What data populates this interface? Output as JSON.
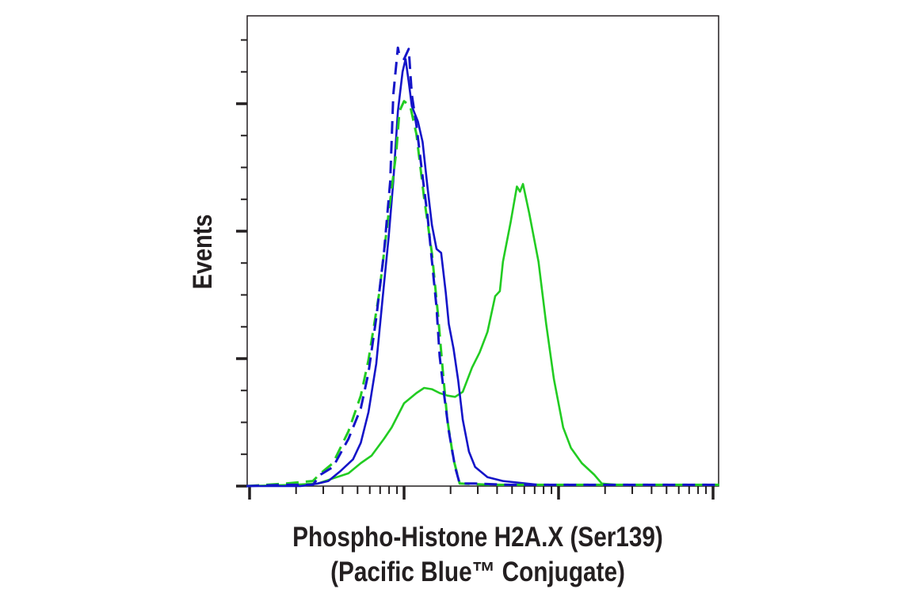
{
  "chart_data": {
    "type": "line",
    "title": "",
    "xlabel_lines": [
      "Phospho-Histone H2A.X (Ser139)",
      "(Pacific Blue™ Conjugate)"
    ],
    "ylabel": "Events",
    "x_scale": "log (decades, unlabeled)",
    "xlim": [
      -0.02,
      3.04
    ],
    "ylim": [
      0,
      3.69
    ],
    "x_major_ticks": [
      0,
      1,
      2,
      3
    ],
    "y_major_ticks": [
      0,
      1,
      2,
      3
    ],
    "y_minor_step": 0.25,
    "grid": false,
    "legend": "none",
    "series": [
      {
        "name": "green-solid",
        "color": "#22cc22",
        "dash": false,
        "points": [
          [
            -0.02,
            0
          ],
          [
            0.28,
            0.01
          ],
          [
            0.44,
            0.02
          ],
          [
            0.54,
            0.06
          ],
          [
            0.64,
            0.1
          ],
          [
            0.72,
            0.18
          ],
          [
            0.79,
            0.24
          ],
          [
            0.87,
            0.37
          ],
          [
            0.92,
            0.46
          ],
          [
            1.0,
            0.65
          ],
          [
            1.08,
            0.73
          ],
          [
            1.13,
            0.77
          ],
          [
            1.18,
            0.76
          ],
          [
            1.23,
            0.73
          ],
          [
            1.28,
            0.71
          ],
          [
            1.33,
            0.7
          ],
          [
            1.38,
            0.74
          ],
          [
            1.44,
            0.93
          ],
          [
            1.49,
            1.05
          ],
          [
            1.54,
            1.21
          ],
          [
            1.59,
            1.49
          ],
          [
            1.62,
            1.53
          ],
          [
            1.64,
            1.76
          ],
          [
            1.69,
            2.07
          ],
          [
            1.73,
            2.35
          ],
          [
            1.75,
            2.31
          ],
          [
            1.77,
            2.37
          ],
          [
            1.81,
            2.14
          ],
          [
            1.87,
            1.76
          ],
          [
            1.92,
            1.27
          ],
          [
            1.97,
            0.84
          ],
          [
            2.03,
            0.46
          ],
          [
            2.08,
            0.3
          ],
          [
            2.15,
            0.18
          ],
          [
            2.23,
            0.09
          ],
          [
            2.28,
            0.02
          ],
          [
            2.38,
            0.01
          ],
          [
            3.04,
            0.01
          ]
        ]
      },
      {
        "name": "blue-solid",
        "color": "#1414c8",
        "dash": false,
        "points": [
          [
            -0.02,
            0
          ],
          [
            0.33,
            0
          ],
          [
            0.44,
            0.02
          ],
          [
            0.51,
            0.04
          ],
          [
            0.59,
            0.12
          ],
          [
            0.67,
            0.21
          ],
          [
            0.72,
            0.34
          ],
          [
            0.77,
            0.58
          ],
          [
            0.82,
            0.96
          ],
          [
            0.87,
            1.58
          ],
          [
            0.9,
            1.95
          ],
          [
            0.93,
            2.39
          ],
          [
            0.96,
            2.94
          ],
          [
            0.99,
            3.25
          ],
          [
            1.01,
            3.35
          ],
          [
            1.03,
            3.17
          ],
          [
            1.05,
            2.98
          ],
          [
            1.09,
            2.86
          ],
          [
            1.12,
            2.7
          ],
          [
            1.15,
            2.36
          ],
          [
            1.18,
            2.05
          ],
          [
            1.21,
            1.86
          ],
          [
            1.24,
            1.83
          ],
          [
            1.27,
            1.52
          ],
          [
            1.29,
            1.27
          ],
          [
            1.32,
            1.08
          ],
          [
            1.35,
            0.83
          ],
          [
            1.38,
            0.52
          ],
          [
            1.42,
            0.27
          ],
          [
            1.46,
            0.15
          ],
          [
            1.54,
            0.07
          ],
          [
            1.64,
            0.04
          ],
          [
            1.87,
            0.01
          ],
          [
            3.04,
            0.01
          ]
        ]
      },
      {
        "name": "green-dashed",
        "color": "#22cc22",
        "dash": true,
        "points": [
          [
            -0.02,
            0
          ],
          [
            0.23,
            0.02
          ],
          [
            0.41,
            0.04
          ],
          [
            0.46,
            0.1
          ],
          [
            0.54,
            0.18
          ],
          [
            0.64,
            0.43
          ],
          [
            0.72,
            0.71
          ],
          [
            0.77,
            0.99
          ],
          [
            0.84,
            1.52
          ],
          [
            0.9,
            2.14
          ],
          [
            0.95,
            2.63
          ],
          [
            0.97,
            2.94
          ],
          [
            1.0,
            3.02
          ],
          [
            1.04,
            2.98
          ],
          [
            1.08,
            2.76
          ],
          [
            1.13,
            2.26
          ],
          [
            1.18,
            1.83
          ],
          [
            1.22,
            1.34
          ],
          [
            1.25,
            0.91
          ],
          [
            1.28,
            0.52
          ],
          [
            1.32,
            0.21
          ],
          [
            1.36,
            0.02
          ],
          [
            1.56,
            0.01
          ],
          [
            3.04,
            0.01
          ]
        ]
      },
      {
        "name": "blue-dashed",
        "color": "#1414c8",
        "dash": true,
        "points": [
          [
            -0.02,
            0
          ],
          [
            0.23,
            0.01
          ],
          [
            0.41,
            0.01
          ],
          [
            0.46,
            0.09
          ],
          [
            0.54,
            0.15
          ],
          [
            0.64,
            0.37
          ],
          [
            0.72,
            0.61
          ],
          [
            0.77,
            0.89
          ],
          [
            0.82,
            1.32
          ],
          [
            0.87,
            1.83
          ],
          [
            0.91,
            2.39
          ],
          [
            0.93,
            3.07
          ],
          [
            0.96,
            3.44
          ],
          [
            0.97,
            3.38
          ],
          [
            1.0,
            3.35
          ],
          [
            1.03,
            3.43
          ],
          [
            1.05,
            3.07
          ],
          [
            1.08,
            2.83
          ],
          [
            1.13,
            2.33
          ],
          [
            1.15,
            2.14
          ],
          [
            1.18,
            1.77
          ],
          [
            1.21,
            1.4
          ],
          [
            1.23,
            1.02
          ],
          [
            1.26,
            0.71
          ],
          [
            1.29,
            0.43
          ],
          [
            1.33,
            0.15
          ],
          [
            1.36,
            0.02
          ],
          [
            1.46,
            0.02
          ],
          [
            1.67,
            0.01
          ],
          [
            3.04,
            0.01
          ]
        ]
      }
    ]
  }
}
